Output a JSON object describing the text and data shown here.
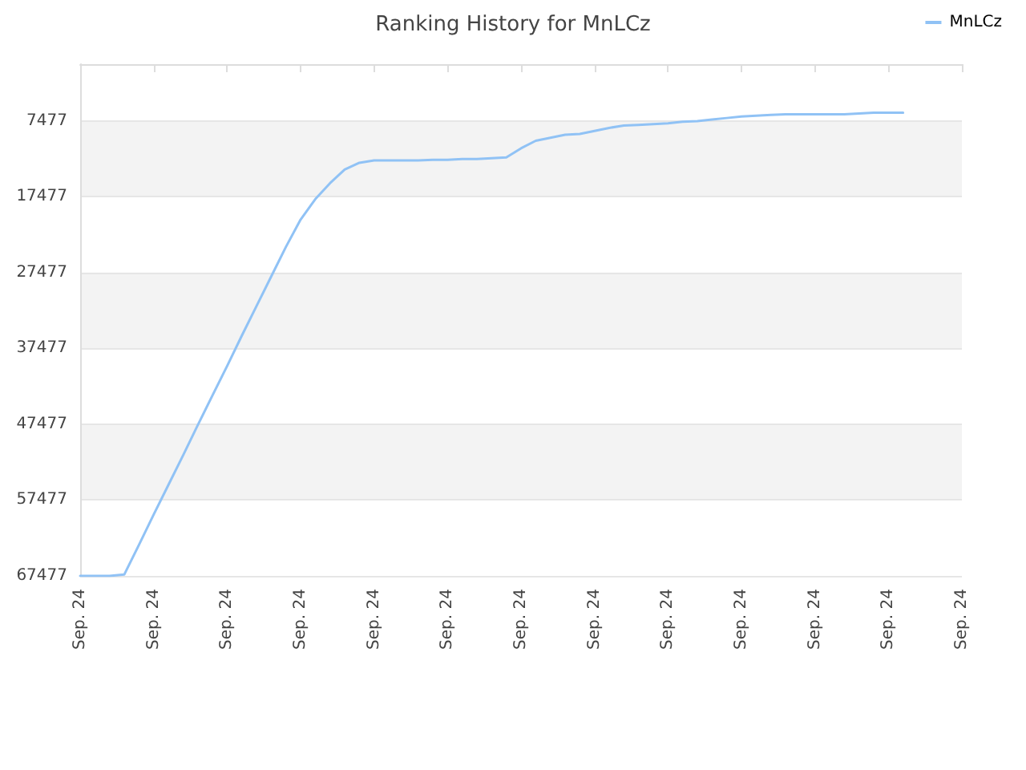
{
  "chart_data": {
    "type": "line",
    "title": "Ranking History for MnLCz",
    "legend": "top right",
    "grid": "y",
    "marker": "none",
    "line_style": "solid",
    "categories": [
      "Sep. 24",
      null,
      null,
      null,
      null,
      "Sep. 24",
      null,
      null,
      null,
      null,
      "Sep. 24",
      null,
      null,
      null,
      null,
      "Sep. 24",
      null,
      null,
      null,
      null,
      "Sep. 24",
      null,
      null,
      null,
      null,
      "Sep. 24",
      null,
      null,
      null,
      null,
      "Sep. 24",
      null,
      null,
      null,
      null,
      "Sep. 24",
      null,
      null,
      null,
      null,
      "Sep. 24",
      null,
      null,
      null,
      null,
      "Sep. 24",
      null,
      null,
      null,
      null,
      "Sep. 24",
      null,
      null,
      null,
      null,
      "Sep. 24",
      null,
      null,
      null,
      null,
      "Sep. 24"
    ],
    "ylim": [
      67477,
      0
    ],
    "yticks": [
      7477,
      17477,
      27477,
      37477,
      47477,
      57477,
      67477
    ],
    "series": [
      {
        "name": "MnLCz",
        "color": "#90c2f5",
        "values": [
          67477,
          67477,
          67477,
          67300,
          63400,
          59400,
          55500,
          51600,
          47600,
          43700,
          39800,
          35800,
          31900,
          28000,
          24100,
          20500,
          17800,
          15700,
          13900,
          13000,
          12700,
          12700,
          12700,
          12700,
          12600,
          12600,
          12500,
          12500,
          12400,
          12300,
          11100,
          10100,
          9700,
          9300,
          9200,
          8800,
          8400,
          8100,
          8000,
          7900,
          7800,
          7600,
          7500,
          7300,
          7100,
          6900,
          6800,
          6700,
          6600,
          6600,
          6600,
          6600,
          6600,
          6500,
          6400,
          6400,
          6400,
          null,
          null,
          null,
          null
        ]
      }
    ]
  }
}
